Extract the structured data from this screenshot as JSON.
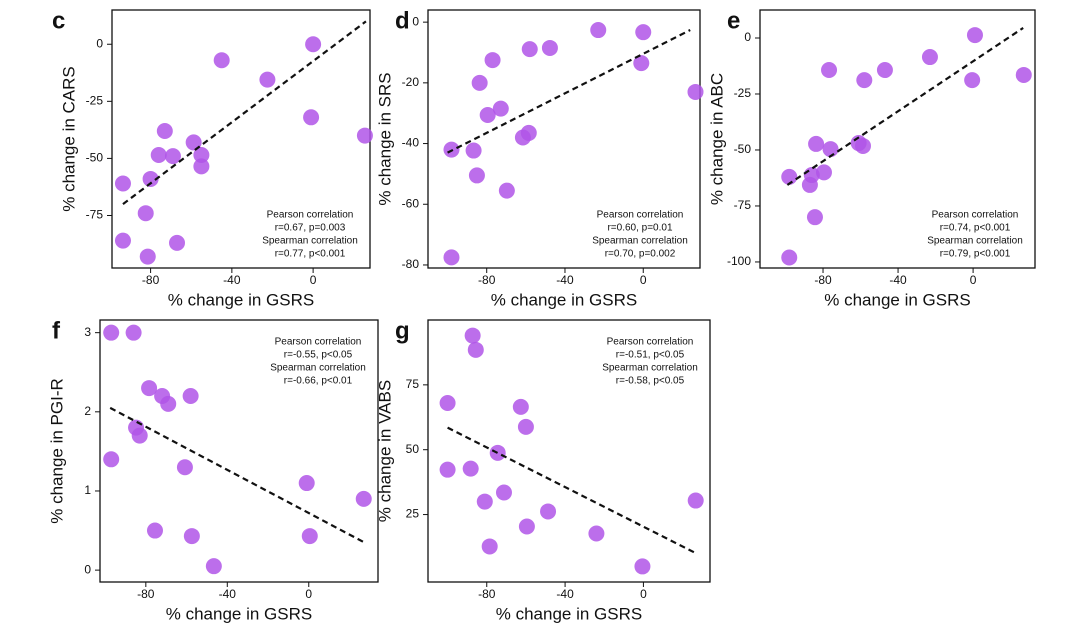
{
  "chart_data": [
    {
      "type": "scatter",
      "label": "c",
      "xlabel": "% change in GSRS",
      "ylabel": "% change in CARS",
      "color": "#b055e8",
      "xlim": [
        -99,
        28
      ],
      "ylim": [
        -98,
        15
      ],
      "xticks": [
        -80,
        -40,
        0
      ],
      "yticks": [
        0,
        -25,
        -50,
        -75
      ],
      "x": [
        0,
        -45,
        -22.5,
        -1,
        25.5,
        -73,
        -58.8,
        -76,
        -69,
        -55,
        -55,
        -93.6,
        -80,
        -82.4,
        -93.6,
        -67,
        -81.4
      ],
      "y": [
        0,
        -7,
        -15.5,
        -32,
        -40,
        -38,
        -43,
        -48.5,
        -49,
        -48.5,
        -53.5,
        -61,
        -59,
        -74,
        -86,
        -87,
        -93
      ],
      "trendline": {
        "x": [
          -93.6,
          26
        ],
        "y": [
          -70,
          10
        ]
      },
      "annotation_loc": "lower right",
      "annotations": [
        "Pearson correlation",
        "r=0.67, p=0.003",
        "Spearman correlation",
        "r=0.77, p<0.001"
      ]
    },
    {
      "type": "scatter",
      "label": "d",
      "xlabel": "% change in GSRS",
      "ylabel": "% change in SRS",
      "color": "#b055e8",
      "xlim": [
        -110,
        29
      ],
      "ylim": [
        -81,
        4
      ],
      "xticks": [
        -80,
        -40,
        0
      ],
      "yticks": [
        0,
        -20,
        -40,
        -60,
        -80
      ],
      "x": [
        -23,
        0,
        -47.7,
        -58,
        -1,
        -77,
        26.7,
        -83.6,
        -72.8,
        -79.5,
        -58.5,
        -61.5,
        -98,
        -86.7,
        -85,
        -69.7,
        -98
      ],
      "y": [
        -2.6,
        -3.3,
        -8.5,
        -8.9,
        -13.5,
        -12.5,
        -23,
        -20,
        -28.5,
        -30.6,
        -36.5,
        -38,
        -42,
        -42.3,
        -50.5,
        -55.5,
        -77.5
      ],
      "trendline": {
        "x": [
          -100,
          24
        ],
        "y": [
          -43,
          -2.6
        ]
      },
      "annotation_loc": "lower right",
      "annotations": [
        "Pearson correlation",
        "r=0.60, p=0.01",
        "Spearman correlation",
        "r=0.70, p=0.002"
      ]
    },
    {
      "type": "scatter",
      "label": "e",
      "xlabel": "% change in GSRS",
      "ylabel": "% change in ABC",
      "color": "#b055e8",
      "xlim": [
        -113.6,
        33
      ],
      "ylim": [
        -102.7,
        12.5
      ],
      "xticks": [
        -80,
        -40,
        0
      ],
      "yticks": [
        0,
        -25,
        -50,
        -75,
        -100
      ],
      "x": [
        1,
        -23,
        27,
        -76.8,
        -47,
        -58,
        -0.5,
        -83.7,
        -61,
        -58.7,
        -76,
        -79.5,
        -86,
        -98,
        -87,
        -84.3,
        -98
      ],
      "y": [
        1.3,
        -8.5,
        -16.5,
        -14.3,
        -14.3,
        -18.8,
        -18.8,
        -47.3,
        -46.9,
        -48.2,
        -49.6,
        -60,
        -61.2,
        -62,
        -65.6,
        -80,
        -98
      ],
      "trendline": {
        "x": [
          -99,
          26.7
        ],
        "y": [
          -65.6,
          4.5
        ]
      },
      "annotation_loc": "lower right",
      "annotations": [
        "Pearson correlation",
        "r=0.74, p<0.001",
        "Spearman correlation",
        "r=0.79, p<0.001"
      ]
    },
    {
      "type": "scatter",
      "label": "f",
      "xlabel": "% change in GSRS",
      "ylabel": "% change in PGI-R",
      "color": "#b055e8",
      "xlim": [
        -102.5,
        34
      ],
      "ylim": [
        -0.15,
        3.16
      ],
      "xticks": [
        -80,
        -40,
        0
      ],
      "yticks": [
        0,
        1,
        2,
        3
      ],
      "x": [
        -97,
        -86,
        -78.4,
        -72,
        -69,
        -58,
        -84.8,
        -83,
        -97,
        -60.8,
        -1,
        27,
        -75.5,
        -57.4,
        0.5,
        -46.6
      ],
      "y": [
        3,
        3,
        2.3,
        2.2,
        2.1,
        2.2,
        1.8,
        1.7,
        1.4,
        1.3,
        1.1,
        0.9,
        0.5,
        0.43,
        0.43,
        0.05
      ],
      "trendline": {
        "x": [
          -97.5,
          28
        ],
        "y": [
          2.05,
          0.34
        ]
      },
      "annotation_loc": "upper right",
      "annotations": [
        "Pearson correlation",
        "r=-0.55, p<0.05",
        "Spearman correlation",
        "r=-0.66, p<0.01"
      ]
    },
    {
      "type": "scatter",
      "label": "g",
      "xlabel": "% change in GSRS",
      "ylabel": "% change in VABS",
      "color": "#b055e8",
      "xlim": [
        -110,
        34
      ],
      "ylim": [
        -1,
        100
      ],
      "xticks": [
        -80,
        -40,
        0
      ],
      "yticks": [
        25,
        50,
        75
      ],
      "x": [
        -87.2,
        -85.6,
        -100,
        -62.6,
        -60,
        -74.4,
        -100,
        -88.2,
        -71.2,
        26.7,
        -81,
        -48.7,
        -59.5,
        -24,
        -78.5,
        -0.5
      ],
      "y": [
        94,
        88.5,
        68,
        66.5,
        58.8,
        48.8,
        42.3,
        42.7,
        33.5,
        30.4,
        30,
        26.2,
        20.4,
        17.7,
        12.7,
        5
      ],
      "trendline": {
        "x": [
          -100,
          26
        ],
        "y": [
          58.5,
          10.4
        ]
      },
      "annotation_loc": "upper right",
      "annotations": [
        "Pearson correlation",
        "r=-0.51, p<0.05",
        "Spearman correlation",
        "r=-0.58, p<0.05"
      ]
    }
  ]
}
